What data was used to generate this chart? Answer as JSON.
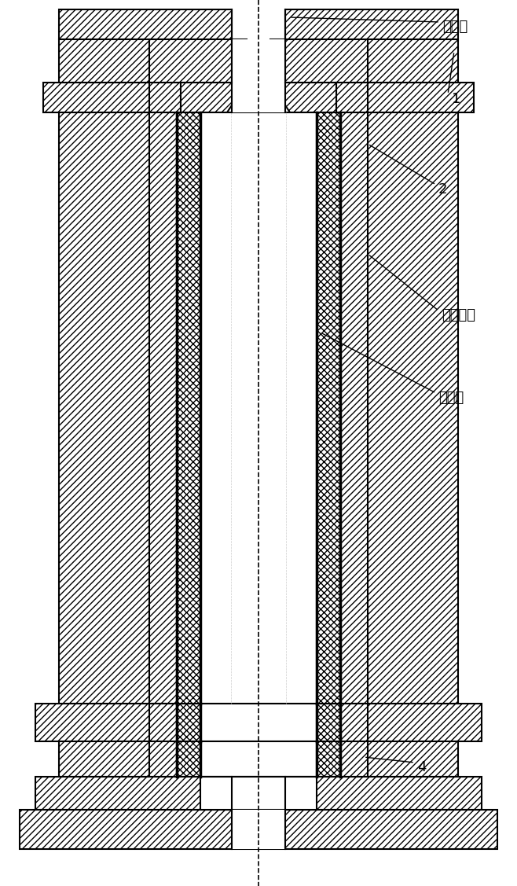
{
  "background_color": "#ffffff",
  "line_color": "#000000",
  "labels": {
    "jialiaoshi": "加料室",
    "label1": "1",
    "label2": "2",
    "juere_keti": "绣热壳体",
    "juere_ceng": "绣热层",
    "label4": "4"
  },
  "figsize": [
    6.58,
    11.27
  ],
  "dpi": 100
}
